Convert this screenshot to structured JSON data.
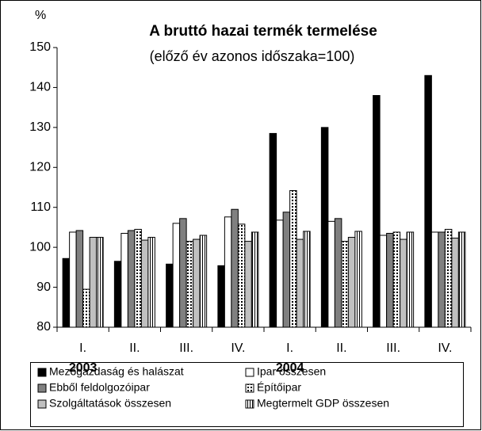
{
  "chart_data": {
    "type": "bar",
    "title": "A bruttó hazai termék termelése",
    "subtitle": "(előző év azonos időszaka=100)",
    "y_label": "%",
    "categories": [
      "I.",
      "II.",
      "III.",
      "IV.",
      "I.",
      "II.",
      "III.",
      "IV."
    ],
    "year_labels": [
      "2003",
      null,
      null,
      null,
      "2004",
      null,
      null,
      null
    ],
    "series": [
      {
        "name": "Mezőgazdaság és halászat",
        "color": "#000000",
        "values": [
          97.2,
          96.5,
          95.8,
          95.4,
          128.5,
          130,
          138,
          143
        ]
      },
      {
        "name": "Ipar összesen",
        "color": "#ffffff",
        "values": [
          103.8,
          103.5,
          106,
          107.6,
          106.8,
          106.5,
          103,
          103.8
        ]
      },
      {
        "name": "Ebből feldolgozóipar",
        "color": "#808080",
        "values": [
          104.2,
          104.2,
          107.2,
          109.5,
          108.8,
          107.2,
          103.5,
          103.8
        ]
      },
      {
        "name": "Építőipar",
        "color": "#ffffff",
        "pattern": "dots",
        "values": [
          89.5,
          104.5,
          101.5,
          105.8,
          114.2,
          101.5,
          103.8,
          104.5
        ]
      },
      {
        "name": "Szolgáltatások összesen",
        "color": "#c0c0c0",
        "values": [
          102.5,
          101.8,
          102,
          101.5,
          102,
          102.5,
          102,
          102.3
        ]
      },
      {
        "name": "Megtermelt GDP összesen",
        "color": "#ffffff",
        "pattern": "vlines",
        "values": [
          102.5,
          102.5,
          103,
          103.8,
          104,
          104,
          103.8,
          103.8
        ]
      }
    ],
    "ylim": [
      80,
      150
    ],
    "yticks": [
      80,
      90,
      100,
      110,
      120,
      130,
      140,
      150
    ],
    "grid": false
  }
}
